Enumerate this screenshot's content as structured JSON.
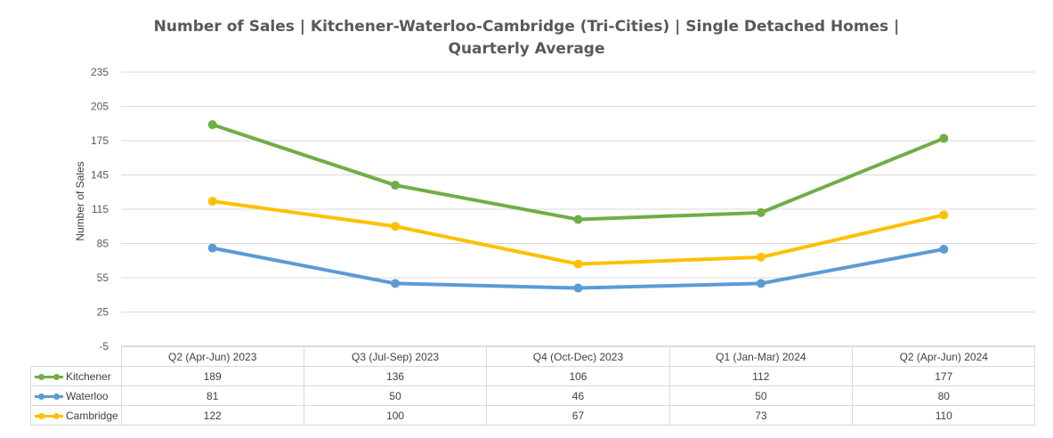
{
  "chart_data": {
    "type": "line",
    "title_lines": [
      "Number of Sales | Kitchener-Waterloo-Cambridge (Tri-Cities) | Single Detached Homes |",
      "Quarterly Average"
    ],
    "xlabel": "",
    "ylabel": "Number of Sales",
    "ylim": [
      -5,
      235
    ],
    "yticks": [
      "235",
      "205",
      "175",
      "145",
      "115",
      "85",
      "55",
      "25",
      "-5"
    ],
    "categories": [
      "Q2 (Apr-Jun) 2023",
      "Q3 (Jul-Sep) 2023",
      "Q4 (Oct-Dec) 2023",
      "Q1 (Jan-Mar) 2024",
      "Q2 (Apr-Jun) 2024"
    ],
    "grid": true,
    "legend": "data-table",
    "series": [
      {
        "name": "Kitchener",
        "color": "#70ad47",
        "values": [
          189,
          136,
          106,
          112,
          177
        ]
      },
      {
        "name": "Waterloo",
        "color": "#5b9bd5",
        "values": [
          81,
          50,
          46,
          50,
          80
        ]
      },
      {
        "name": "Cambridge",
        "color": "#ffc000",
        "values": [
          122,
          100,
          67,
          73,
          110
        ]
      }
    ]
  }
}
